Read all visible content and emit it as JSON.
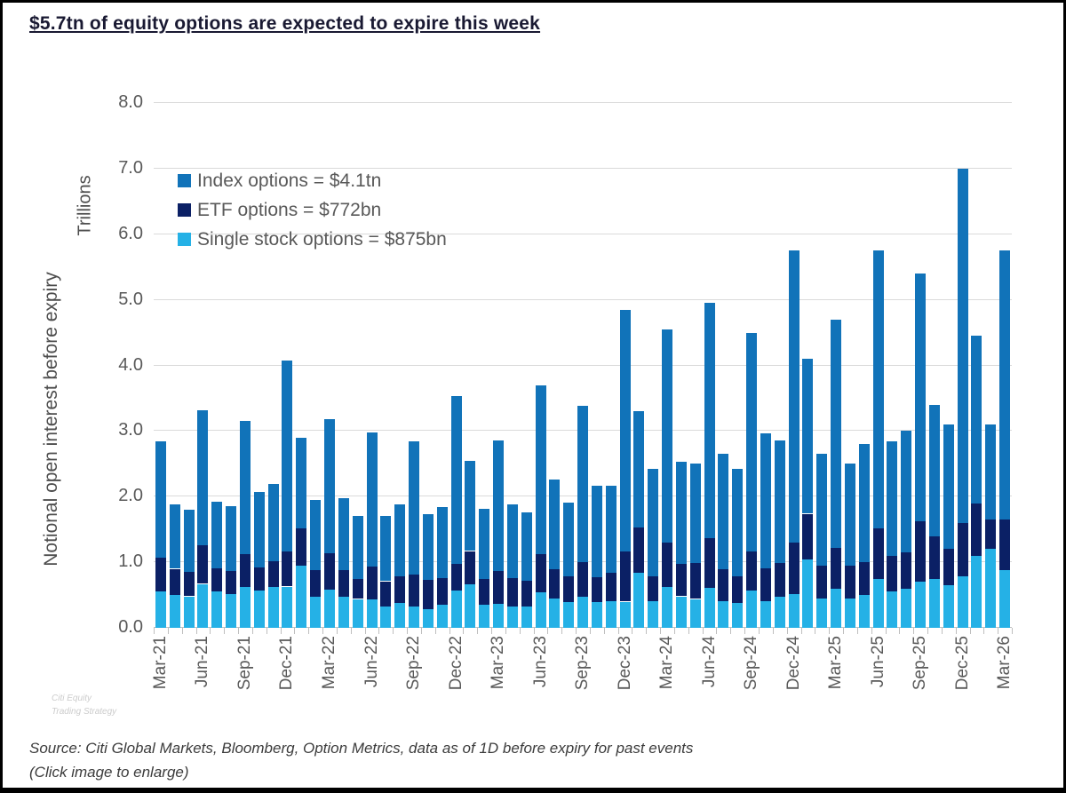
{
  "page": {
    "title": "$5.7tn of equity options are expected to expire this week",
    "source_line1": "Source: Citi Global Markets, Bloomberg, Option Metrics, data as of 1D before expiry for past events",
    "source_line2": "(Click image to enlarge)",
    "watermark_line1": "Citi Equity",
    "watermark_line2": "Trading Strategy"
  },
  "colors": {
    "index": "#1173B9",
    "etf": "#0B2065",
    "single_stock": "#25B1E6",
    "grid": "#DADADA",
    "axis_line": "#BFBFBF",
    "tick_text": "#595959",
    "axis_label_text": "#4D4D4D",
    "title_text": "#191932",
    "source_text": "#3C3C3C",
    "watermark_text": "#CCCCCC"
  },
  "chart_data": {
    "type": "bar",
    "stacked": true,
    "ylabel": "Notional open interest before expiry",
    "y_units_label": "Trillions",
    "ylim": [
      0,
      8
    ],
    "ytick_labels": [
      "0.0",
      "1.0",
      "2.0",
      "3.0",
      "4.0",
      "5.0",
      "6.0",
      "7.0",
      "8.0"
    ],
    "grid": true,
    "legend_position": "top-left-inside",
    "legend": [
      {
        "series": "index",
        "label": "Index options = $4.1tn"
      },
      {
        "series": "etf",
        "label": "ETF options = $772bn"
      },
      {
        "series": "single_stock",
        "label": "Single stock options = $875bn"
      }
    ],
    "categories": [
      "Mar-21",
      "Apr-21",
      "May-21",
      "Jun-21",
      "Jul-21",
      "Aug-21",
      "Sep-21",
      "Oct-21",
      "Nov-21",
      "Dec-21",
      "Jan-22",
      "Feb-22",
      "Mar-22",
      "Apr-22",
      "May-22",
      "Jun-22",
      "Jul-22",
      "Aug-22",
      "Sep-22",
      "Oct-22",
      "Nov-22",
      "Dec-22",
      "Jan-23",
      "Feb-23",
      "Mar-23",
      "Apr-23",
      "May-23",
      "Jun-23",
      "Jul-23",
      "Aug-23",
      "Sep-23",
      "Oct-23",
      "Nov-23",
      "Dec-23",
      "Jan-24",
      "Feb-24",
      "Mar-24",
      "Apr-24",
      "May-24",
      "Jun-24",
      "Jul-24",
      "Aug-24",
      "Sep-24",
      "Oct-24",
      "Nov-24",
      "Dec-24",
      "Jan-25",
      "Feb-25",
      "Mar-25",
      "Apr-25",
      "May-25",
      "Jun-25",
      "Jul-25",
      "Aug-25",
      "Sep-25",
      "Oct-25",
      "Nov-25",
      "Dec-25",
      "Jan-26",
      "Feb-26",
      "Mar-26"
    ],
    "x_label_every": 3,
    "series": [
      {
        "name": "Single stock options",
        "key": "single_stock",
        "stack_order": "bottom",
        "values": [
          0.55,
          0.5,
          0.48,
          0.67,
          0.55,
          0.52,
          0.62,
          0.57,
          0.62,
          0.63,
          0.95,
          0.48,
          0.58,
          0.48,
          0.44,
          0.43,
          0.33,
          0.38,
          0.32,
          0.29,
          0.35,
          0.57,
          0.66,
          0.35,
          0.37,
          0.33,
          0.32,
          0.54,
          0.45,
          0.39,
          0.47,
          0.39,
          0.41,
          0.4,
          0.84,
          0.41,
          0.63,
          0.48,
          0.44,
          0.61,
          0.41,
          0.38,
          0.57,
          0.41,
          0.48,
          0.51,
          1.05,
          0.45,
          0.6,
          0.45,
          0.5,
          0.75,
          0.55,
          0.6,
          0.7,
          0.75,
          0.65,
          0.79,
          1.1,
          1.2,
          0.88
        ]
      },
      {
        "name": "ETF options",
        "key": "etf",
        "stack_order": "middle",
        "values": [
          0.52,
          0.4,
          0.37,
          0.59,
          0.36,
          0.35,
          0.5,
          0.35,
          0.4,
          0.54,
          0.56,
          0.4,
          0.56,
          0.4,
          0.31,
          0.51,
          0.38,
          0.4,
          0.49,
          0.44,
          0.41,
          0.41,
          0.51,
          0.4,
          0.5,
          0.43,
          0.4,
          0.58,
          0.44,
          0.39,
          0.53,
          0.38,
          0.43,
          0.76,
          0.69,
          0.38,
          0.67,
          0.49,
          0.55,
          0.76,
          0.48,
          0.41,
          0.6,
          0.5,
          0.51,
          0.79,
          0.69,
          0.5,
          0.62,
          0.5,
          0.5,
          0.77,
          0.55,
          0.55,
          0.93,
          0.65,
          0.55,
          0.81,
          0.8,
          0.45,
          0.77
        ]
      },
      {
        "name": "Index options",
        "key": "index",
        "stack_order": "top",
        "values": [
          1.78,
          0.98,
          0.95,
          2.06,
          1.01,
          0.98,
          2.03,
          1.15,
          1.18,
          2.91,
          1.39,
          1.07,
          2.04,
          1.1,
          0.95,
          2.04,
          0.99,
          1.1,
          2.04,
          1.0,
          1.08,
          2.56,
          1.38,
          1.06,
          1.99,
          1.12,
          1.04,
          2.58,
          1.37,
          1.13,
          2.38,
          1.39,
          1.32,
          3.69,
          1.77,
          1.64,
          3.25,
          1.56,
          1.51,
          3.58,
          1.76,
          1.63,
          3.32,
          2.06,
          1.87,
          4.45,
          2.36,
          1.7,
          3.48,
          1.55,
          1.8,
          4.23,
          1.75,
          1.85,
          3.77,
          2.0,
          1.9,
          5.4,
          2.55,
          1.45,
          4.1
        ]
      }
    ]
  }
}
